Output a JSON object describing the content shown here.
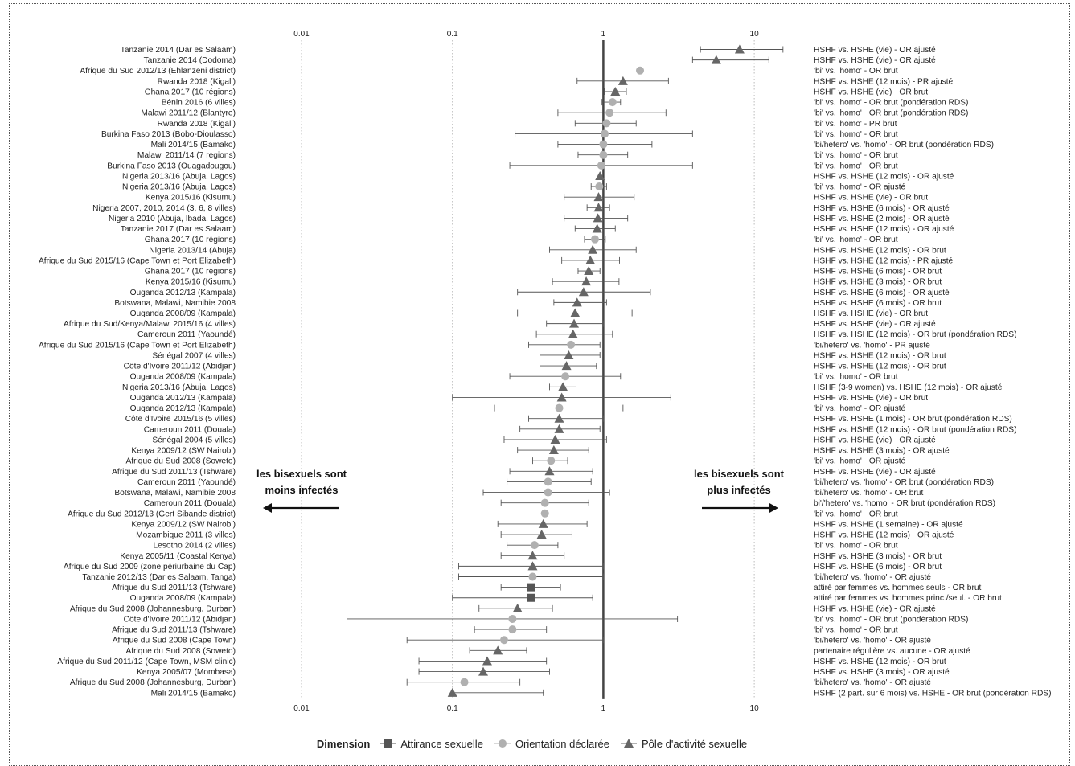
{
  "chart_data": {
    "type": "forest",
    "x_scale": "log",
    "xlim": [
      0.01,
      20
    ],
    "x_ticks": [
      "0.01",
      "0.1",
      "1",
      "10"
    ],
    "x_tick_values": [
      0.01,
      0.1,
      1,
      10
    ],
    "reference_line": 1,
    "grid": "vertical dotted",
    "legend": {
      "title": "Dimension",
      "position": "bottom",
      "entries": [
        {
          "key": "attirance",
          "label": "Attirance sexuelle",
          "marker": "square",
          "color": "#555555"
        },
        {
          "key": "orientation",
          "label": "Orientation déclarée",
          "marker": "circle",
          "color": "#b0b0b0"
        },
        {
          "key": "pole",
          "label": "Pôle d'activité sexuelle",
          "marker": "triangle",
          "color": "#666666"
        }
      ]
    },
    "annotations": {
      "left_line1": "les bisexuels sont",
      "left_line2": "moins infectés",
      "right_line1": "les bisexuels sont",
      "right_line2": "plus infectés"
    },
    "rows": [
      {
        "study": "Tanzanie 2014 (Dar es Salaam)",
        "comparison": "HSHF vs. HSHE (vie) - OR ajusté",
        "dim": "pole",
        "or": 8.0,
        "lo": 4.4,
        "hi": 15.5
      },
      {
        "study": "Tanzanie 2014 (Dodoma)",
        "comparison": "HSHF vs. HSHE (vie) - OR ajusté",
        "dim": "pole",
        "or": 5.6,
        "lo": 3.9,
        "hi": 12.5
      },
      {
        "study": "Afrique du Sud 2012/13 (Ehlanzeni district)",
        "comparison": "'bi' vs. 'homo' - OR brut",
        "dim": "orientation",
        "or": 1.75,
        "lo": null,
        "hi": null
      },
      {
        "study": "Rwanda 2018 (Kigali)",
        "comparison": "HSHF vs. HSHE (12 mois) - PR ajusté",
        "dim": "pole",
        "or": 1.35,
        "lo": 0.67,
        "hi": 2.7
      },
      {
        "study": "Ghana 2017 (10 régions)",
        "comparison": "HSHF vs. HSHE (vie) - OR brut",
        "dim": "pole",
        "or": 1.2,
        "lo": 1.02,
        "hi": 1.42
      },
      {
        "study": "Bénin 2016 (6 villes)",
        "comparison": "'bi' vs. 'homo' - OR brut (pondération RDS)",
        "dim": "orientation",
        "or": 1.15,
        "lo": 0.98,
        "hi": 1.3
      },
      {
        "study": "Malawi 2011/12 (Blantyre)",
        "comparison": "'bi' vs. 'homo' - OR brut (pondération RDS)",
        "dim": "orientation",
        "or": 1.1,
        "lo": 0.5,
        "hi": 2.6
      },
      {
        "study": "Rwanda 2018 (Kigali)",
        "comparison": "'bi' vs. 'homo' - PR brut",
        "dim": "orientation",
        "or": 1.05,
        "lo": 0.65,
        "hi": 1.65
      },
      {
        "study": "Burkina Faso 2013 (Bobo-Dioulasso)",
        "comparison": "'bi' vs. 'homo' - OR brut",
        "dim": "orientation",
        "or": 1.02,
        "lo": 0.26,
        "hi": 3.9
      },
      {
        "study": "Mali 2014/15 (Bamako)",
        "comparison": "'bi/hetero' vs. 'homo' - OR brut (pondération RDS)",
        "dim": "orientation",
        "or": 1.0,
        "lo": 0.5,
        "hi": 2.1
      },
      {
        "study": "Malawi 2011/14 (7 regions)",
        "comparison": "'bi' vs. 'homo' - OR brut",
        "dim": "orientation",
        "or": 1.0,
        "lo": 0.68,
        "hi": 1.45
      },
      {
        "study": "Burkina Faso 2013 (Ouagadougou)",
        "comparison": "'bi' vs. 'homo' - OR brut",
        "dim": "orientation",
        "or": 0.97,
        "lo": 0.24,
        "hi": 3.9
      },
      {
        "study": "Nigeria 2013/16 (Abuja, Lagos)",
        "comparison": "HSHF vs. HSHE (12 mois) - OR ajusté",
        "dim": "pole",
        "or": 0.95,
        "lo": null,
        "hi": null
      },
      {
        "study": "Nigeria 2013/16 (Abuja, Lagos)",
        "comparison": "'bi' vs. 'homo' - OR ajusté",
        "dim": "orientation",
        "or": 0.94,
        "lo": 0.83,
        "hi": 1.05
      },
      {
        "study": "Kenya 2015/16 (Kisumu)",
        "comparison": "HSHF vs. HSHE (vie) - OR brut",
        "dim": "pole",
        "or": 0.93,
        "lo": 0.55,
        "hi": 1.6
      },
      {
        "study": "Nigeria 2007, 2010, 2014 (3, 6, 8 villes)",
        "comparison": "HSHF vs. HSHE (6 mois) - OR ajusté",
        "dim": "pole",
        "or": 0.93,
        "lo": 0.78,
        "hi": 1.1
      },
      {
        "study": "Nigeria 2010 (Abuja, Ibada, Lagos)",
        "comparison": "HSHF vs. HSHE (2 mois) - OR ajusté",
        "dim": "pole",
        "or": 0.92,
        "lo": 0.55,
        "hi": 1.45
      },
      {
        "study": "Tanzanie 2017 (Dar es Salaam)",
        "comparison": "HSHF vs. HSHE (12 mois) - OR ajusté",
        "dim": "pole",
        "or": 0.91,
        "lo": 0.65,
        "hi": 1.2
      },
      {
        "study": "Ghana 2017 (10 régions)",
        "comparison": "'bi' vs. 'homo' - OR brut",
        "dim": "orientation",
        "or": 0.88,
        "lo": 0.75,
        "hi": 1.03
      },
      {
        "study": "Nigeria 2013/14 (Abuja)",
        "comparison": "HSHF vs. HSHE (12 mois) - OR brut",
        "dim": "pole",
        "or": 0.85,
        "lo": 0.44,
        "hi": 1.65
      },
      {
        "study": "Afrique du Sud 2015/16 (Cape Town et Port Elizabeth)",
        "comparison": "HSHF vs. HSHE (12 mois) - PR ajusté",
        "dim": "pole",
        "or": 0.82,
        "lo": 0.53,
        "hi": 1.28
      },
      {
        "study": "Ghana 2017 (10 régions)",
        "comparison": "HSHF vs. HSHE (6 mois) - OR brut",
        "dim": "pole",
        "or": 0.8,
        "lo": 0.68,
        "hi": 0.95
      },
      {
        "study": "Kenya 2015/16 (Kisumu)",
        "comparison": "HSHF vs. HSHE (3 mois) - OR brut",
        "dim": "pole",
        "or": 0.77,
        "lo": 0.46,
        "hi": 1.27
      },
      {
        "study": "Ouganda 2012/13 (Kampala)",
        "comparison": "HSHF vs. HSHE (6 mois) - OR ajusté",
        "dim": "pole",
        "or": 0.74,
        "lo": 0.27,
        "hi": 2.05
      },
      {
        "study": "Botswana, Malawi, Namibie 2008",
        "comparison": "HSHF vs. HSHE (6 mois) - OR brut",
        "dim": "pole",
        "or": 0.67,
        "lo": 0.47,
        "hi": 1.05
      },
      {
        "study": "Ouganda 2008/09 (Kampala)",
        "comparison": "HSHF vs. HSHE (vie) - OR brut",
        "dim": "pole",
        "or": 0.65,
        "lo": 0.27,
        "hi": 1.55
      },
      {
        "study": "Afrique du Sud/Kenya/Malawi 2015/16 (4 villes)",
        "comparison": "HSHF vs. HSHE (vie) - OR ajusté",
        "dim": "pole",
        "or": 0.64,
        "lo": 0.42,
        "hi": 1.0
      },
      {
        "study": "Cameroun 2011 (Yaoundé)",
        "comparison": "HSHF vs. HSHE (12 mois) - OR brut (pondération RDS)",
        "dim": "pole",
        "or": 0.63,
        "lo": 0.36,
        "hi": 1.15
      },
      {
        "study": "Afrique du Sud 2015/16 (Cape Town et Port Elizabeth)",
        "comparison": "'bi/hetero' vs. 'homo' - PR ajusté",
        "dim": "orientation",
        "or": 0.61,
        "lo": 0.32,
        "hi": 0.95
      },
      {
        "study": "Sénégal 2007 (4 villes)",
        "comparison": "HSHF vs. HSHE (12 mois) - OR brut",
        "dim": "pole",
        "or": 0.59,
        "lo": 0.38,
        "hi": 0.95
      },
      {
        "study": "Côte d'Ivoire 2011/12 (Abidjan)",
        "comparison": "HSHF vs. HSHE (12 mois) - OR brut",
        "dim": "pole",
        "or": 0.57,
        "lo": 0.38,
        "hi": 0.9
      },
      {
        "study": "Ouganda 2008/09 (Kampala)",
        "comparison": "'bi' vs. 'homo' - OR brut",
        "dim": "orientation",
        "or": 0.56,
        "lo": 0.24,
        "hi": 1.3
      },
      {
        "study": "Nigeria 2013/16 (Abuja, Lagos)",
        "comparison": "HSHF (3-9 women) vs. HSHE (12 mois) - OR ajusté",
        "dim": "pole",
        "or": 0.54,
        "lo": 0.44,
        "hi": 0.66
      },
      {
        "study": "Ouganda 2012/13 (Kampala)",
        "comparison": "HSHF vs. HSHE (vie) - OR brut",
        "dim": "pole",
        "or": 0.53,
        "lo": 0.1,
        "hi": 2.8
      },
      {
        "study": "Ouganda 2012/13 (Kampala)",
        "comparison": "'bi' vs. 'homo' - OR ajusté",
        "dim": "orientation",
        "or": 0.51,
        "lo": 0.19,
        "hi": 1.35
      },
      {
        "study": "Côte d'Ivoire 2015/16 (5 villes)",
        "comparison": "HSHF vs. HSHE (1 mois) - OR brut (pondération RDS)",
        "dim": "pole",
        "or": 0.51,
        "lo": 0.32,
        "hi": 1.0
      },
      {
        "study": "Cameroun 2011 (Douala)",
        "comparison": "HSHF vs. HSHE (12 mois) - OR brut (pondération RDS)",
        "dim": "pole",
        "or": 0.51,
        "lo": 0.28,
        "hi": 0.95
      },
      {
        "study": "Sénégal 2004 (5 villes)",
        "comparison": "HSHF vs. HSHE (vie) - OR ajusté",
        "dim": "pole",
        "or": 0.48,
        "lo": 0.22,
        "hi": 1.05
      },
      {
        "study": "Kenya 2009/12 (SW Nairobi)",
        "comparison": "HSHF vs. HSHE (3 mois) - OR ajusté",
        "dim": "pole",
        "or": 0.47,
        "lo": 0.27,
        "hi": 0.8
      },
      {
        "study": "Afrique du Sud 2008 (Soweto)",
        "comparison": "'bi' vs. 'homo' - OR ajusté",
        "dim": "orientation",
        "or": 0.45,
        "lo": 0.34,
        "hi": 0.58
      },
      {
        "study": "Afrique du Sud 2011/13 (Tshware)",
        "comparison": "HSHF vs. HSHE (vie) - OR ajusté",
        "dim": "pole",
        "or": 0.44,
        "lo": 0.24,
        "hi": 0.85
      },
      {
        "study": "Cameroun 2011 (Yaoundé)",
        "comparison": "'bi/hetero' vs. 'homo' - OR brut (pondération RDS)",
        "dim": "orientation",
        "or": 0.43,
        "lo": 0.23,
        "hi": 0.83
      },
      {
        "study": "Botswana, Malawi, Namibie 2008",
        "comparison": "'bi/hetero' vs. 'homo' - OR brut",
        "dim": "orientation",
        "or": 0.43,
        "lo": 0.16,
        "hi": 1.1
      },
      {
        "study": "Cameroun 2011 (Douala)",
        "comparison": "bi'/'hetero' vs. 'homo' - OR brut (pondération RDS)",
        "dim": "orientation",
        "or": 0.41,
        "lo": 0.21,
        "hi": 0.8
      },
      {
        "study": "Afrique du Sud 2012/13 (Gert Sibande district)",
        "comparison": "'bi' vs. 'homo' - OR brut",
        "dim": "orientation",
        "or": 0.41,
        "lo": null,
        "hi": null
      },
      {
        "study": "Kenya 2009/12 (SW Nairobi)",
        "comparison": "HSHF vs. HSHE (1 semaine) - OR ajusté",
        "dim": "pole",
        "or": 0.4,
        "lo": 0.2,
        "hi": 0.78
      },
      {
        "study": "Mozambique 2011 (3 villes)",
        "comparison": "HSHF vs. HSHE (12 mois) - OR ajusté",
        "dim": "pole",
        "or": 0.39,
        "lo": 0.21,
        "hi": 0.62
      },
      {
        "study": "Lesotho 2014 (2 villes)",
        "comparison": "'bi' vs. 'homo' - OR brut",
        "dim": "orientation",
        "or": 0.35,
        "lo": 0.23,
        "hi": 0.5
      },
      {
        "study": "Kenya 2005/11 (Coastal Kenya)",
        "comparison": "HSHF vs. HSHE (3 mois) - OR brut",
        "dim": "pole",
        "or": 0.34,
        "lo": 0.21,
        "hi": 0.55
      },
      {
        "study": "Afrique du Sud 2009 (zone périurbaine du Cap)",
        "comparison": "HSHF vs. HSHE (6 mois) - OR brut",
        "dim": "pole",
        "or": 0.34,
        "lo": 0.11,
        "hi": 1.0
      },
      {
        "study": "Tanzanie 2012/13 (Dar es Salaam, Tanga)",
        "comparison": "'bi/hetero' vs. 'homo' - OR ajusté",
        "dim": "orientation",
        "or": 0.34,
        "lo": 0.11,
        "hi": 1.0
      },
      {
        "study": "Afrique du Sud 2011/13 (Tshware)",
        "comparison": "attiré par femmes vs. hommes seuls - OR brut",
        "dim": "attirance",
        "or": 0.33,
        "lo": 0.21,
        "hi": 0.52
      },
      {
        "study": "Ouganda 2008/09 (Kampala)",
        "comparison": "attiré par femmes vs. hommes princ./seul. - OR brut",
        "dim": "attirance",
        "or": 0.33,
        "lo": 0.1,
        "hi": 0.85
      },
      {
        "study": "Afrique du Sud 2008 (Johannesburg, Durban)",
        "comparison": "HSHF vs. HSHE (vie) - OR ajusté",
        "dim": "pole",
        "or": 0.27,
        "lo": 0.15,
        "hi": 0.46
      },
      {
        "study": "Côte d'Ivoire 2011/12 (Abidjan)",
        "comparison": "'bi' vs. 'homo' - OR brut (pondération RDS)",
        "dim": "orientation",
        "or": 0.25,
        "lo": 0.02,
        "hi": 3.1
      },
      {
        "study": "Afrique du Sud 2011/13 (Tshware)",
        "comparison": "'bi' vs. 'homo' - OR brut",
        "dim": "orientation",
        "or": 0.25,
        "lo": 0.14,
        "hi": 0.42
      },
      {
        "study": "Afrique du Sud 2008 (Cape Town)",
        "comparison": "'bi/hetero' vs. 'homo' - OR ajusté",
        "dim": "orientation",
        "or": 0.22,
        "lo": 0.05,
        "hi": 1.0
      },
      {
        "study": "Afrique du Sud 2008 (Soweto)",
        "comparison": "partenaire régulière vs. aucune - OR ajusté",
        "dim": "pole",
        "or": 0.2,
        "lo": 0.13,
        "hi": 0.31
      },
      {
        "study": "Afrique du Sud 2011/12 (Cape Town, MSM clinic)",
        "comparison": "HSHF vs. HSHE (12 mois) - OR brut",
        "dim": "pole",
        "or": 0.17,
        "lo": 0.06,
        "hi": 0.42
      },
      {
        "study": "Kenya 2005/07 (Mombasa)",
        "comparison": "HSHF vs. HSHE (3 mois) - OR ajusté",
        "dim": "pole",
        "or": 0.16,
        "lo": 0.06,
        "hi": 0.44
      },
      {
        "study": "Afrique du Sud 2008 (Johannesburg, Durban)",
        "comparison": "'bi/hetero' vs. 'homo' - OR ajusté",
        "dim": "orientation",
        "or": 0.12,
        "lo": 0.05,
        "hi": 0.28
      },
      {
        "study": "Mali 2014/15 (Bamako)",
        "comparison": "HSHF (2 part. sur 6 mois) vs. HSHE - OR brut (pondération RDS)",
        "dim": "pole",
        "or": 0.1,
        "lo": null,
        "hi": 0.4
      }
    ]
  }
}
